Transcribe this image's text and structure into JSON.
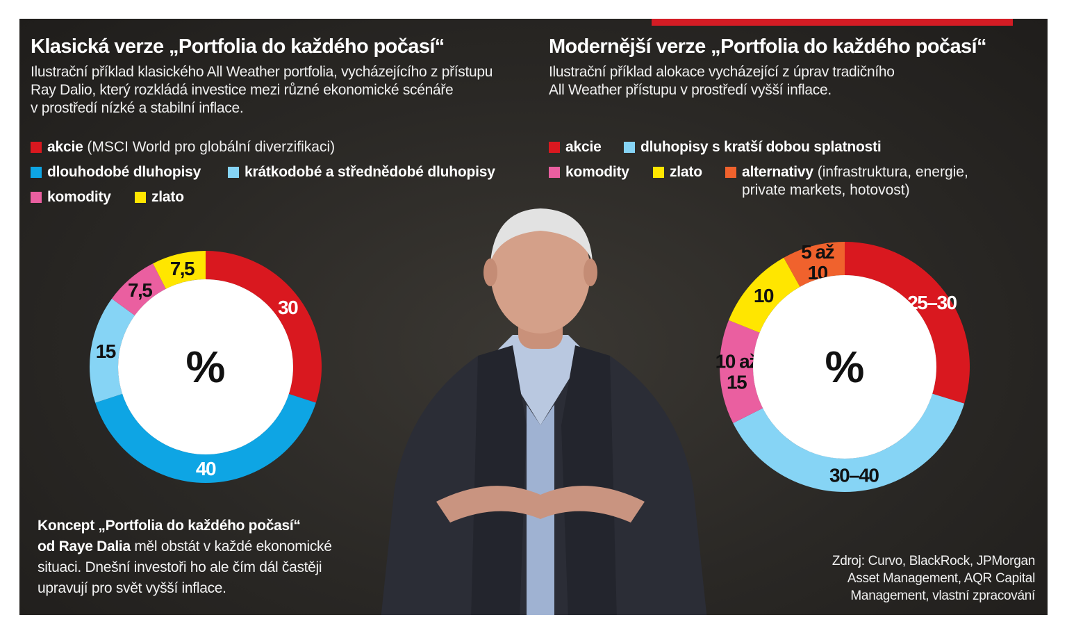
{
  "left": {
    "title": "Klasická verze „Portfolia do každého počasí“",
    "subtitle": [
      "Ilustrační příklad klasického All Weather portfolia, vycházejícího z přístupu",
      "Ray Dalio, který rozkládá investice mezi různé ekonomické scénáře",
      "v prostředí nízké a stabilní inflace."
    ],
    "legend": [
      {
        "label": "akcie",
        "note": "(MSCI World pro globální diverzifikaci)",
        "color": "#d9181f"
      },
      {
        "label": "dlouhodobé dluhopisy",
        "note": "",
        "color": "#0ea5e4"
      },
      {
        "label": "krátkodobé a střednědobé dluhopisy",
        "note": "",
        "color": "#86d4f5"
      },
      {
        "label": "komodity",
        "note": "",
        "color": "#ea5fa0"
      },
      {
        "label": "zlato",
        "note": "",
        "color": "#ffe600"
      }
    ]
  },
  "right": {
    "title": "Modernější verze „Portfolia do každého počasí“",
    "subtitle": [
      "Ilustrační příklad alokace vycházející z úprav tradičního",
      "All Weather přístupu v prostředí vyšší inflace."
    ],
    "legend": [
      {
        "label": "akcie",
        "note": "",
        "color": "#d9181f"
      },
      {
        "label": "dluhopisy s kratší dobou splatnosti",
        "note": "",
        "color": "#86d4f5"
      },
      {
        "label": "komodity",
        "note": "",
        "color": "#ea5fa0"
      },
      {
        "label": "zlato",
        "note": "",
        "color": "#ffe600"
      },
      {
        "label": "alternativy",
        "note": "(infrastruktura, energie,",
        "note2": "private markets, hotovost)",
        "color": "#f0622d"
      }
    ]
  },
  "chart_data": [
    {
      "type": "pie",
      "center_label": "%",
      "categories": [
        "akcie",
        "dlouhodobé dluhopisy",
        "krátkodobé a střednědobé dluhopisy",
        "komodity",
        "zlato"
      ],
      "values": [
        30,
        40,
        15,
        7.5,
        7.5
      ],
      "labels": [
        "30",
        "40",
        "15",
        "7,5",
        "7,5"
      ],
      "colors": [
        "#d9181f",
        "#0ea5e4",
        "#86d4f5",
        "#ea5fa0",
        "#ffe600"
      ],
      "label_colors": [
        "#ffffff",
        "#ffffff",
        "#111111",
        "#111111",
        "#111111"
      ]
    },
    {
      "type": "pie",
      "center_label": "%",
      "categories": [
        "akcie",
        "dluhopisy s kratší dobou splatnosti",
        "komodity",
        "zlato",
        "alternativy"
      ],
      "ranges": [
        [
          25,
          30
        ],
        [
          30,
          40
        ],
        [
          10,
          15
        ],
        [
          10,
          10
        ],
        [
          5,
          10
        ]
      ],
      "values": [
        27.5,
        35,
        12.5,
        10,
        7.5
      ],
      "labels": [
        "25–30",
        "30–40",
        "10 až\n15",
        "10",
        "5 až\n10"
      ],
      "colors": [
        "#d9181f",
        "#86d4f5",
        "#ea5fa0",
        "#ffe600",
        "#f0622d"
      ],
      "label_colors": [
        "#ffffff",
        "#111111",
        "#111111",
        "#111111",
        "#111111"
      ]
    }
  ],
  "caption": {
    "bold_1": "Koncept „Portfolia do každého počasí“",
    "bold_2": "od Raye Dalia",
    "rest_2": " měl obstát v každé ekonomické",
    "line_3": "situaci. Dnešní investoři ho ale čím dál častěji",
    "line_4": "upravují pro svět vyšší inflace."
  },
  "source": [
    "Zdroj: Curvo, BlackRock, JPMorgan",
    "Asset Management, AQR Capital",
    "Management, vlastní zpracování"
  ]
}
